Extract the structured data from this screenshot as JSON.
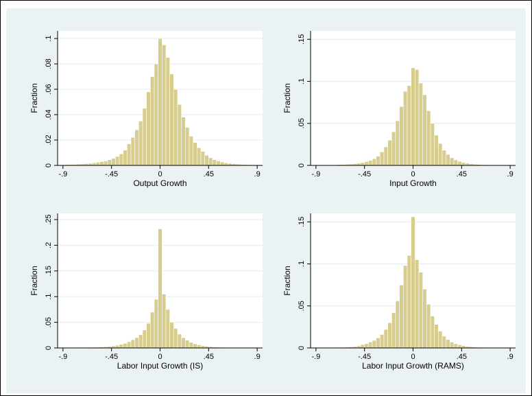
{
  "chart_data": [
    {
      "type": "bar",
      "xlabel": "Output Growth",
      "ylabel": "Fraction",
      "xlim": [
        -0.95,
        0.95
      ],
      "ylim": [
        0,
        0.106
      ],
      "xticks": [
        -0.9,
        -0.45,
        0,
        0.45,
        0.9
      ],
      "xtick_labels": [
        "-.9",
        "-.45",
        "0",
        ".45",
        ".9"
      ],
      "yticks": [
        0,
        0.02,
        0.04,
        0.06,
        0.08,
        0.1
      ],
      "ytick_labels": [
        "0",
        ".02",
        ".04",
        ".06",
        ".08",
        ".1"
      ],
      "bin_width": 0.036,
      "bin_centers": [
        -0.9,
        -0.864,
        -0.828,
        -0.792,
        -0.756,
        -0.72,
        -0.684,
        -0.648,
        -0.612,
        -0.576,
        -0.54,
        -0.504,
        -0.468,
        -0.432,
        -0.396,
        -0.36,
        -0.324,
        -0.288,
        -0.252,
        -0.216,
        -0.18,
        -0.144,
        -0.108,
        -0.072,
        -0.036,
        0.0,
        0.036,
        0.072,
        0.108,
        0.144,
        0.18,
        0.216,
        0.252,
        0.288,
        0.324,
        0.36,
        0.396,
        0.432,
        0.468,
        0.504,
        0.54,
        0.576,
        0.612,
        0.648,
        0.684,
        0.72,
        0.756,
        0.792,
        0.828,
        0.864,
        0.9
      ],
      "values": [
        0.0005,
        0.0006,
        0.0007,
        0.0008,
        0.001,
        0.0012,
        0.0014,
        0.0016,
        0.002,
        0.0025,
        0.003,
        0.0035,
        0.0045,
        0.0055,
        0.007,
        0.009,
        0.012,
        0.017,
        0.022,
        0.028,
        0.035,
        0.045,
        0.058,
        0.07,
        0.08,
        0.1,
        0.095,
        0.085,
        0.072,
        0.06,
        0.048,
        0.038,
        0.03,
        0.023,
        0.018,
        0.014,
        0.011,
        0.008,
        0.006,
        0.0045,
        0.0035,
        0.0027,
        0.002,
        0.0016,
        0.0013,
        0.001,
        0.0008,
        0.0006,
        0.0005,
        0.0004,
        0.0003
      ],
      "grid": true,
      "bar_color": "#d6cd8f"
    },
    {
      "type": "bar",
      "xlabel": "Input Growth",
      "ylabel": "Fraction",
      "xlim": [
        -0.95,
        0.95
      ],
      "ylim": [
        0,
        0.16
      ],
      "xticks": [
        -0.9,
        -0.45,
        0,
        0.45,
        0.9
      ],
      "xtick_labels": [
        "-.9",
        "-.45",
        "0",
        ".45",
        ".9"
      ],
      "yticks": [
        0,
        0.05,
        0.1,
        0.15
      ],
      "ytick_labels": [
        "0",
        ".05",
        ".1",
        ".15"
      ],
      "bin_width": 0.036,
      "bin_centers": [
        -0.9,
        -0.864,
        -0.828,
        -0.792,
        -0.756,
        -0.72,
        -0.684,
        -0.648,
        -0.612,
        -0.576,
        -0.54,
        -0.504,
        -0.468,
        -0.432,
        -0.396,
        -0.36,
        -0.324,
        -0.288,
        -0.252,
        -0.216,
        -0.18,
        -0.144,
        -0.108,
        -0.072,
        -0.036,
        0.0,
        0.036,
        0.072,
        0.108,
        0.144,
        0.18,
        0.216,
        0.252,
        0.288,
        0.324,
        0.36,
        0.396,
        0.432,
        0.468,
        0.504,
        0.54,
        0.576,
        0.612,
        0.648,
        0.684,
        0.72,
        0.756,
        0.792,
        0.828,
        0.864,
        0.9
      ],
      "values": [
        0.0003,
        0.0003,
        0.0004,
        0.0005,
        0.0006,
        0.0007,
        0.0009,
        0.001,
        0.0013,
        0.0016,
        0.002,
        0.0026,
        0.0034,
        0.0045,
        0.006,
        0.008,
        0.011,
        0.016,
        0.022,
        0.03,
        0.04,
        0.053,
        0.07,
        0.088,
        0.095,
        0.116,
        0.114,
        0.098,
        0.084,
        0.065,
        0.05,
        0.036,
        0.026,
        0.018,
        0.013,
        0.009,
        0.0065,
        0.0048,
        0.0035,
        0.0026,
        0.0019,
        0.0014,
        0.0011,
        0.0008,
        0.0006,
        0.0005,
        0.0004,
        0.0003,
        0.0002,
        0.0002,
        0.0001
      ],
      "grid": true,
      "bar_color": "#d6cd8f"
    },
    {
      "type": "bar",
      "xlabel": "Labor Input Growth (IS)",
      "ylabel": "Fraction",
      "xlim": [
        -0.95,
        0.95
      ],
      "ylim": [
        0,
        0.262
      ],
      "xticks": [
        -0.9,
        -0.45,
        0,
        0.45,
        0.9
      ],
      "xtick_labels": [
        "-.9",
        "-.45",
        "0",
        ".45",
        ".9"
      ],
      "yticks": [
        0,
        0.05,
        0.1,
        0.15,
        0.2,
        0.25
      ],
      "ytick_labels": [
        "0",
        ".05",
        ".1",
        ".15",
        ".2",
        ".25"
      ],
      "bin_width": 0.036,
      "bin_centers": [
        -0.9,
        -0.864,
        -0.828,
        -0.792,
        -0.756,
        -0.72,
        -0.684,
        -0.648,
        -0.612,
        -0.576,
        -0.54,
        -0.504,
        -0.468,
        -0.432,
        -0.396,
        -0.36,
        -0.324,
        -0.288,
        -0.252,
        -0.216,
        -0.18,
        -0.144,
        -0.108,
        -0.072,
        -0.036,
        0.0,
        0.036,
        0.072,
        0.108,
        0.144,
        0.18,
        0.216,
        0.252,
        0.288,
        0.324,
        0.36,
        0.396,
        0.432,
        0.468,
        0.504,
        0.54,
        0.576,
        0.612,
        0.648,
        0.684,
        0.72,
        0.756,
        0.792,
        0.828,
        0.864,
        0.9
      ],
      "values": [
        0.0003,
        0.0004,
        0.0005,
        0.0006,
        0.0007,
        0.0008,
        0.001,
        0.0012,
        0.0014,
        0.0016,
        0.002,
        0.0024,
        0.003,
        0.004,
        0.005,
        0.007,
        0.009,
        0.012,
        0.016,
        0.02,
        0.026,
        0.035,
        0.048,
        0.07,
        0.095,
        0.232,
        0.105,
        0.075,
        0.05,
        0.038,
        0.027,
        0.02,
        0.015,
        0.011,
        0.008,
        0.006,
        0.0045,
        0.0034,
        0.0025,
        0.0019,
        0.0014,
        0.0011,
        0.0009,
        0.0007,
        0.0006,
        0.0005,
        0.0004,
        0.0003,
        0.0003,
        0.0002,
        0.0002
      ],
      "grid": true,
      "bar_color": "#d6cd8f"
    },
    {
      "type": "bar",
      "xlabel": "Labor Input Growth (RAMS)",
      "ylabel": "Fraction",
      "xlim": [
        -0.95,
        0.95
      ],
      "ylim": [
        0,
        0.16
      ],
      "xticks": [
        -0.9,
        -0.45,
        0,
        0.45,
        0.9
      ],
      "xtick_labels": [
        "-.9",
        "-.45",
        "0",
        ".45",
        ".9"
      ],
      "yticks": [
        0,
        0.05,
        0.1,
        0.15
      ],
      "ytick_labels": [
        "0",
        ".05",
        ".1",
        ".15"
      ],
      "bin_width": 0.036,
      "bin_centers": [
        -0.9,
        -0.864,
        -0.828,
        -0.792,
        -0.756,
        -0.72,
        -0.684,
        -0.648,
        -0.612,
        -0.576,
        -0.54,
        -0.504,
        -0.468,
        -0.432,
        -0.396,
        -0.36,
        -0.324,
        -0.288,
        -0.252,
        -0.216,
        -0.18,
        -0.144,
        -0.108,
        -0.072,
        -0.036,
        0.0,
        0.036,
        0.072,
        0.108,
        0.144,
        0.18,
        0.216,
        0.252,
        0.288,
        0.324,
        0.36,
        0.396,
        0.432,
        0.468,
        0.504,
        0.54,
        0.576,
        0.612,
        0.648,
        0.684,
        0.72,
        0.756,
        0.792,
        0.828,
        0.864,
        0.9
      ],
      "values": [
        0.0002,
        0.0002,
        0.0003,
        0.0003,
        0.0004,
        0.0005,
        0.0006,
        0.0008,
        0.001,
        0.0013,
        0.0017,
        0.0025,
        0.004,
        0.005,
        0.007,
        0.009,
        0.012,
        0.016,
        0.022,
        0.03,
        0.042,
        0.056,
        0.075,
        0.098,
        0.11,
        0.156,
        0.105,
        0.09,
        0.07,
        0.052,
        0.038,
        0.028,
        0.02,
        0.014,
        0.01,
        0.007,
        0.005,
        0.0037,
        0.0027,
        0.002,
        0.0015,
        0.0011,
        0.0008,
        0.0006,
        0.0005,
        0.0004,
        0.0003,
        0.0002,
        0.0002,
        0.0001,
        0.0001
      ],
      "grid": true,
      "bar_color": "#d6cd8f"
    }
  ]
}
